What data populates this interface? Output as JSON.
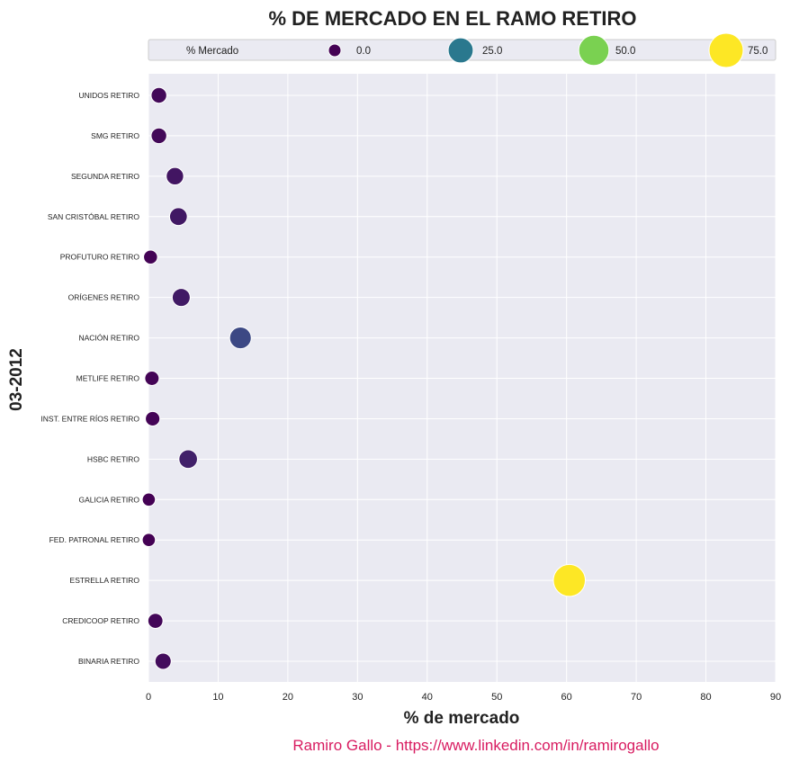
{
  "chart_data": {
    "type": "scatter",
    "title": "% DE MERCADO EN EL RAMO RETIRO",
    "xlabel": "% de mercado",
    "ylabel": "03-2012",
    "xlim": [
      0,
      90
    ],
    "xticks": [
      0,
      10,
      20,
      30,
      40,
      50,
      60,
      70,
      80,
      90
    ],
    "grid": true,
    "legend": {
      "title": "% Mercado",
      "placement": "top",
      "entries": [
        {
          "label": "0.0",
          "value": 0,
          "color": "#440154"
        },
        {
          "label": "25.0",
          "value": 25,
          "color": "#2a788e"
        },
        {
          "label": "50.0",
          "value": 50,
          "color": "#7ad151"
        },
        {
          "label": "75.0",
          "value": 75,
          "color": "#fde725"
        }
      ]
    },
    "points": [
      {
        "category": "UNIDOS RETIRO",
        "x": 1.5
      },
      {
        "category": "SMG RETIRO",
        "x": 1.5
      },
      {
        "category": "SEGUNDA RETIRO",
        "x": 3.8
      },
      {
        "category": "SAN CRISTÓBAL RETIRO",
        "x": 4.3
      },
      {
        "category": "PROFUTURO RETIRO",
        "x": 0.3
      },
      {
        "category": "ORÍGENES RETIRO",
        "x": 4.7
      },
      {
        "category": "NACIÓN RETIRO",
        "x": 13.2
      },
      {
        "category": "METLIFE  RETIRO",
        "x": 0.5
      },
      {
        "category": "INST. ENTRE RÍOS RETIRO",
        "x": 0.6
      },
      {
        "category": "HSBC RETIRO",
        "x": 5.7
      },
      {
        "category": "GALICIA RETIRO",
        "x": 0.05
      },
      {
        "category": "FED. PATRONAL RETIRO",
        "x": 0.05
      },
      {
        "category": "ESTRELLA RETIRO",
        "x": 60.4
      },
      {
        "category": "CREDICOOP RETIRO",
        "x": 1.0
      },
      {
        "category": "BINARIA RETIRO",
        "x": 2.1
      }
    ],
    "colors": {
      "plot_background": "#eaeaf2",
      "grid": "#ffffff",
      "source_text": "#d81b60"
    },
    "source": "Ramiro Gallo - https://www.linkedin.com/in/ramirogallo"
  }
}
